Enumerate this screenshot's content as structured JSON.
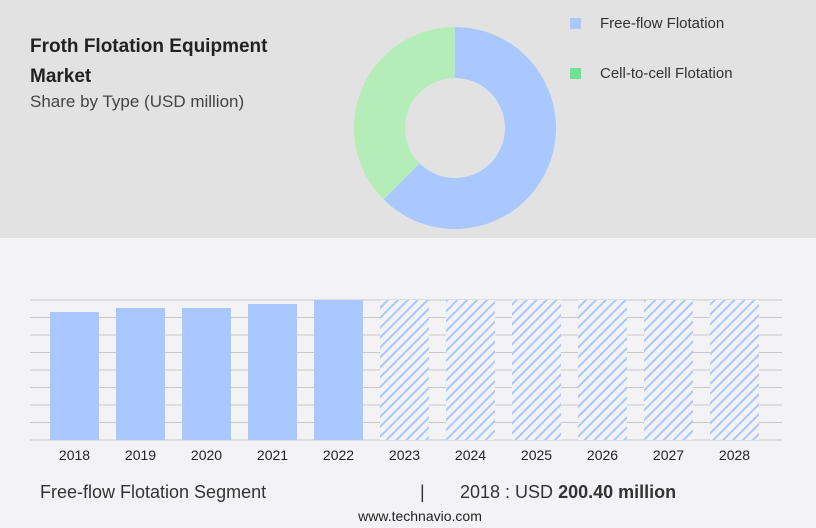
{
  "title": "Froth Flotation Equipment Market",
  "subtitle": "Share by Type (USD million)",
  "chart_data": [
    {
      "type": "pie",
      "donut": true,
      "series": [
        {
          "name": "Free-flow Flotation",
          "value": 62.5,
          "color": "#a8c8ff"
        },
        {
          "name": "Cell-to-cell Flotation",
          "value": 37.5,
          "color": "#b5edb8",
          "legend_color": "#6ee38f"
        }
      ],
      "legend": "right"
    },
    {
      "type": "bar",
      "categories": [
        "2018",
        "2019",
        "2020",
        "2021",
        "2022",
        "2023",
        "2024",
        "2025",
        "2026",
        "2027",
        "2028"
      ],
      "values": [
        200.4,
        206.7,
        206.7,
        212.9,
        219.2,
        null,
        null,
        null,
        null,
        null,
        null
      ],
      "forecast": [
        false,
        false,
        false,
        false,
        false,
        true,
        true,
        true,
        true,
        true,
        true
      ],
      "color": "#a8c8ff",
      "ylim": [
        0,
        219.2
      ],
      "grid": true
    }
  ],
  "footer": {
    "segment": "Free-flow Flotation Segment",
    "divider": "|",
    "year_label": "2018 : USD",
    "value": "200.40 million"
  },
  "website": "www.technavio.com"
}
